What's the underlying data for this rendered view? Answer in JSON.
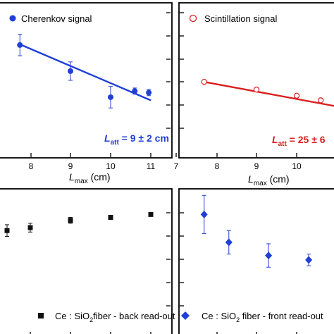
{
  "chart_data": [
    {
      "type": "scatter",
      "panel": "top-left",
      "legend": "Cherenkov signal",
      "legend_marker": "filled-circle",
      "color": "#1f3fd6",
      "xlabel_main": "L",
      "xlabel_sub": "max",
      "xlabel_unit": " (cm)",
      "xlim": [
        7,
        11
      ],
      "xticks": [
        "8",
        "9",
        "10",
        "11"
      ],
      "ylim": [
        0,
        1
      ],
      "points": [
        {
          "x": 7.65,
          "y": 0.73,
          "err": 0.07
        },
        {
          "x": 9.0,
          "y": 0.56,
          "err": 0.06
        },
        {
          "x": 10.0,
          "y": 0.39,
          "err": 0.07
        },
        {
          "x": 10.6,
          "y": 0.43,
          "err": 0.02
        },
        {
          "x": 10.95,
          "y": 0.42,
          "err": 0.02
        }
      ],
      "fit": [
        [
          7.7,
          0.73
        ],
        [
          11.0,
          0.37
        ]
      ],
      "annotation": {
        "main": "L",
        "sub": "att",
        "text": " = 9 ± 2 cm"
      }
    },
    {
      "type": "scatter",
      "panel": "top-right",
      "legend": "Scintillation signal",
      "legend_marker": "open-circle",
      "color": "#d91e1e",
      "xlabel_main": "L",
      "xlabel_sub": "max",
      "xlabel_unit": " (cm)",
      "xlim": [
        7,
        11
      ],
      "xticks": [
        "7",
        "8",
        "9",
        "10"
      ],
      "ylim": [
        0,
        1
      ],
      "points": [
        {
          "x": 7.7,
          "y": 0.49
        },
        {
          "x": 9.0,
          "y": 0.44
        },
        {
          "x": 10.0,
          "y": 0.4
        },
        {
          "x": 10.6,
          "y": 0.37
        }
      ],
      "fit": [
        [
          7.7,
          0.49
        ],
        [
          11.0,
          0.33
        ]
      ],
      "annotation": {
        "main": "L",
        "sub": "att",
        "text": " = 25 ± 6"
      }
    },
    {
      "type": "scatter",
      "panel": "bottom-left",
      "legend_pre": "Ce : SiO",
      "legend_sub": "2",
      "legend_post": "fiber - back read-out",
      "legend_marker": "filled-square",
      "color": "#111111",
      "xlim": [
        7,
        11
      ],
      "ylim": [
        0,
        1
      ],
      "points": [
        {
          "x": 7.0,
          "y": 0.72,
          "err": 0.04
        },
        {
          "x": 8.0,
          "y": 0.74,
          "err": 0.03
        },
        {
          "x": 9.0,
          "y": 0.79,
          "err": 0.02
        },
        {
          "x": 10.0,
          "y": 0.81,
          "err": 0.01
        },
        {
          "x": 11.0,
          "y": 0.83,
          "err": 0.01
        }
      ]
    },
    {
      "type": "scatter",
      "panel": "bottom-right",
      "legend_pre": "Ce : SiO",
      "legend_sub": "2",
      "legend_post": " fiber - front read-out",
      "legend_marker": "filled-diamond",
      "color": "#1f3fd6",
      "xlim": [
        7,
        11
      ],
      "ylim": [
        0,
        1
      ],
      "points": [
        {
          "x": 7.7,
          "y": 0.83,
          "err": 0.13
        },
        {
          "x": 8.3,
          "y": 0.64,
          "err": 0.08
        },
        {
          "x": 9.3,
          "y": 0.55,
          "err": 0.08
        },
        {
          "x": 10.3,
          "y": 0.52,
          "err": 0.04
        }
      ]
    }
  ]
}
